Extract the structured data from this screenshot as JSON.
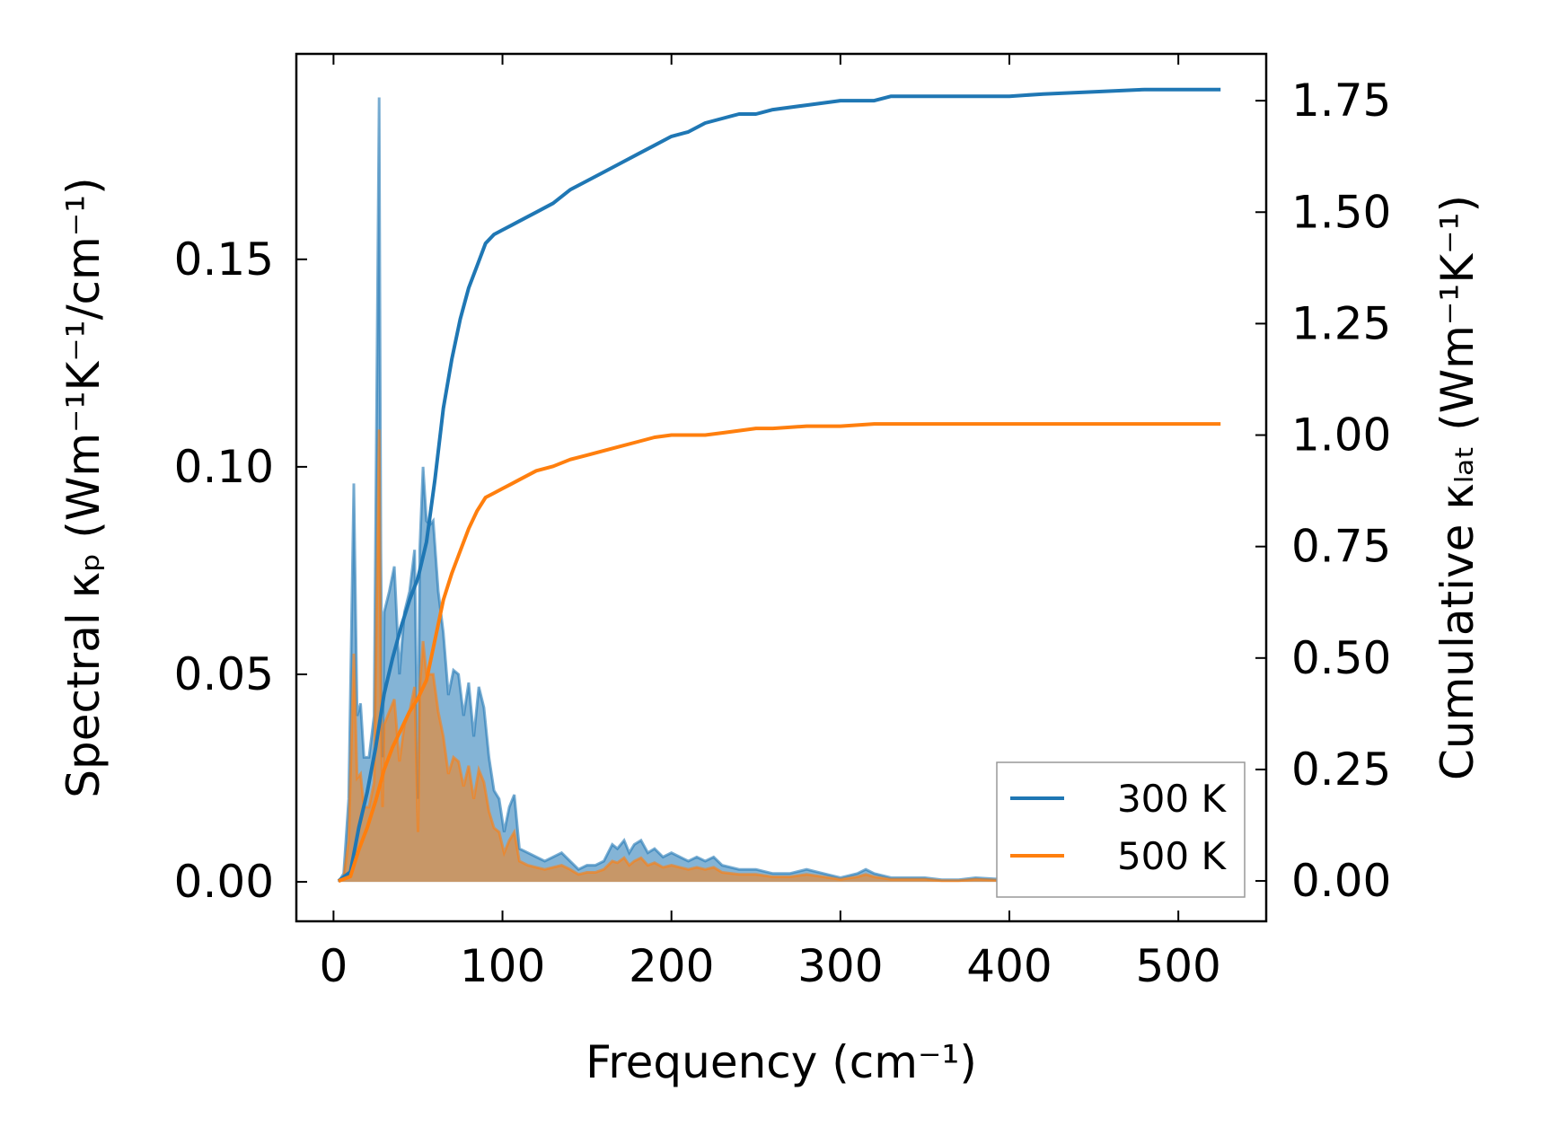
{
  "chart_data": {
    "type": "line",
    "xlabel": "Frequency (cm⁻¹)",
    "ylabel_left": "Spectral κₚ (Wm⁻¹K⁻¹/cm⁻¹)",
    "ylabel_right": "Cumulative κₗₐₜ (Wm⁻¹K⁻¹)",
    "xlim": [
      -22,
      552
    ],
    "ylim_left": [
      -0.0095,
      0.1995
    ],
    "ylim_right": [
      -0.0905,
      1.855
    ],
    "xticks": [
      "0",
      "100",
      "200",
      "300",
      "400",
      "500"
    ],
    "yticks_left": [
      "0.00",
      "0.05",
      "0.10",
      "0.15"
    ],
    "yticks_right": [
      "0.00",
      "0.25",
      "0.50",
      "0.75",
      "1.00",
      "1.25",
      "1.50",
      "1.75"
    ],
    "legend_position": "lower right",
    "colors": {
      "300 K": "#1f77b4",
      "500 K": "#ff7f0e"
    },
    "spectral_series": [
      {
        "name": "300 K",
        "axis": "left",
        "x": [
          3,
          6,
          9,
          12,
          14,
          16,
          18,
          21,
          24,
          27,
          28,
          29,
          30,
          33,
          36,
          39,
          42,
          45,
          48,
          50,
          51,
          53,
          55,
          57,
          59,
          62,
          65,
          68,
          71,
          74,
          77,
          80,
          83,
          86,
          89,
          92,
          95,
          98,
          101,
          104,
          107,
          110,
          115,
          120,
          125,
          130,
          135,
          140,
          145,
          150,
          155,
          160,
          165,
          168,
          172,
          175,
          178,
          182,
          186,
          190,
          195,
          200,
          205,
          210,
          215,
          220,
          225,
          230,
          240,
          250,
          260,
          270,
          280,
          290,
          300,
          310,
          315,
          320,
          330,
          340,
          350,
          360,
          370,
          380,
          400,
          420,
          430,
          440,
          450,
          460,
          470,
          480,
          490,
          500,
          510,
          525
        ],
        "y": [
          0.0,
          0.002,
          0.02,
          0.096,
          0.04,
          0.043,
          0.03,
          0.03,
          0.04,
          0.189,
          0.08,
          0.03,
          0.065,
          0.07,
          0.076,
          0.05,
          0.065,
          0.07,
          0.08,
          0.02,
          0.08,
          0.1,
          0.087,
          0.086,
          0.087,
          0.07,
          0.06,
          0.045,
          0.051,
          0.05,
          0.04,
          0.048,
          0.035,
          0.047,
          0.042,
          0.03,
          0.022,
          0.02,
          0.012,
          0.018,
          0.021,
          0.008,
          0.007,
          0.006,
          0.005,
          0.006,
          0.007,
          0.005,
          0.003,
          0.004,
          0.004,
          0.005,
          0.009,
          0.008,
          0.01,
          0.007,
          0.009,
          0.01,
          0.007,
          0.008,
          0.006,
          0.007,
          0.006,
          0.005,
          0.006,
          0.005,
          0.006,
          0.004,
          0.003,
          0.003,
          0.002,
          0.002,
          0.003,
          0.002,
          0.001,
          0.002,
          0.003,
          0.002,
          0.001,
          0.001,
          0.001,
          0.0005,
          0.0005,
          0.001,
          0.0005,
          0.001,
          0.002,
          0.001,
          0.002,
          0.0015,
          0.001,
          0.0015,
          0.001,
          0.0008,
          0.0005,
          0.0005
        ]
      },
      {
        "name": "500 K",
        "axis": "left",
        "x": [
          3,
          6,
          9,
          12,
          14,
          16,
          18,
          21,
          24,
          27,
          28,
          29,
          30,
          33,
          36,
          39,
          42,
          45,
          48,
          50,
          51,
          53,
          55,
          57,
          59,
          62,
          65,
          68,
          71,
          74,
          77,
          80,
          83,
          86,
          89,
          92,
          95,
          98,
          101,
          104,
          107,
          110,
          115,
          120,
          125,
          130,
          135,
          140,
          145,
          150,
          155,
          160,
          165,
          168,
          172,
          175,
          178,
          182,
          186,
          190,
          195,
          200,
          205,
          210,
          215,
          220,
          225,
          230,
          240,
          250,
          260,
          270,
          280,
          290,
          300,
          310,
          315,
          320,
          330,
          340,
          350,
          360,
          370,
          380,
          400,
          420,
          430,
          440,
          450,
          460,
          470,
          480,
          490,
          500,
          510,
          525
        ],
        "y": [
          0.0,
          0.001,
          0.01,
          0.055,
          0.025,
          0.026,
          0.018,
          0.018,
          0.024,
          0.109,
          0.045,
          0.018,
          0.038,
          0.041,
          0.044,
          0.029,
          0.038,
          0.041,
          0.047,
          0.012,
          0.047,
          0.058,
          0.05,
          0.05,
          0.05,
          0.041,
          0.035,
          0.026,
          0.03,
          0.029,
          0.023,
          0.028,
          0.02,
          0.027,
          0.024,
          0.017,
          0.013,
          0.012,
          0.007,
          0.01,
          0.012,
          0.005,
          0.004,
          0.0035,
          0.003,
          0.0035,
          0.004,
          0.003,
          0.0018,
          0.0023,
          0.0023,
          0.003,
          0.005,
          0.0046,
          0.0058,
          0.004,
          0.005,
          0.0058,
          0.004,
          0.0046,
          0.0035,
          0.004,
          0.0035,
          0.003,
          0.0035,
          0.003,
          0.0035,
          0.0023,
          0.0018,
          0.0018,
          0.0012,
          0.0012,
          0.0018,
          0.0012,
          0.0006,
          0.0012,
          0.0018,
          0.0012,
          0.0006,
          0.0006,
          0.0006,
          0.0003,
          0.0003,
          0.0006,
          0.0003,
          0.0006,
          0.0012,
          0.0006,
          0.0012,
          0.0009,
          0.0006,
          0.0009,
          0.0006,
          0.0005,
          0.0003,
          0.0003
        ]
      }
    ],
    "cumulative_series": [
      {
        "name": "300 K",
        "axis": "right",
        "x": [
          3,
          10,
          15,
          20,
          25,
          30,
          35,
          40,
          45,
          50,
          55,
          60,
          65,
          70,
          75,
          80,
          85,
          90,
          95,
          100,
          105,
          110,
          120,
          130,
          140,
          150,
          160,
          170,
          180,
          190,
          200,
          210,
          220,
          230,
          240,
          250,
          260,
          280,
          300,
          320,
          330,
          350,
          380,
          400,
          420,
          450,
          480,
          500,
          525
        ],
        "y": [
          0.0,
          0.02,
          0.12,
          0.2,
          0.3,
          0.42,
          0.5,
          0.57,
          0.63,
          0.68,
          0.76,
          0.9,
          1.06,
          1.17,
          1.26,
          1.33,
          1.38,
          1.43,
          1.45,
          1.46,
          1.47,
          1.48,
          1.5,
          1.52,
          1.55,
          1.57,
          1.59,
          1.61,
          1.63,
          1.65,
          1.67,
          1.68,
          1.7,
          1.71,
          1.72,
          1.72,
          1.73,
          1.74,
          1.75,
          1.75,
          1.76,
          1.76,
          1.76,
          1.76,
          1.765,
          1.77,
          1.775,
          1.775,
          1.775
        ]
      },
      {
        "name": "500 K",
        "axis": "right",
        "x": [
          3,
          10,
          15,
          20,
          25,
          30,
          35,
          40,
          45,
          50,
          55,
          60,
          65,
          70,
          75,
          80,
          85,
          90,
          95,
          100,
          105,
          110,
          120,
          130,
          140,
          150,
          160,
          170,
          180,
          190,
          200,
          210,
          220,
          230,
          240,
          250,
          260,
          280,
          300,
          320,
          330,
          350,
          380,
          400,
          420,
          450,
          480,
          500,
          525
        ],
        "y": [
          0.0,
          0.01,
          0.07,
          0.12,
          0.18,
          0.25,
          0.3,
          0.34,
          0.38,
          0.41,
          0.45,
          0.54,
          0.63,
          0.69,
          0.74,
          0.79,
          0.83,
          0.86,
          0.87,
          0.88,
          0.89,
          0.9,
          0.92,
          0.93,
          0.945,
          0.955,
          0.965,
          0.975,
          0.985,
          0.995,
          1.0,
          1.0,
          1.0,
          1.005,
          1.01,
          1.015,
          1.015,
          1.02,
          1.02,
          1.025,
          1.025,
          1.025,
          1.025,
          1.025,
          1.025,
          1.025,
          1.025,
          1.025,
          1.025
        ]
      }
    ]
  }
}
